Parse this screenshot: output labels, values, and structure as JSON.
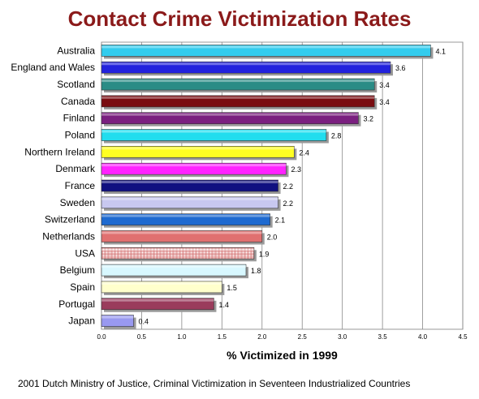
{
  "chart_data": {
    "type": "bar",
    "orientation": "horizontal",
    "title": "Contact Crime Victimization Rates",
    "xlabel": "% Victimized in 1999",
    "ylabel": "",
    "source": "2001 Dutch Ministry of Justice, Criminal Victimization in Seventeen Industrialized Countries",
    "xlim": [
      0,
      4.5
    ],
    "ticks": [
      "0.0",
      "0.5",
      "1.0",
      "1.5",
      "2.0",
      "2.5",
      "3.0",
      "3.5",
      "4.0",
      "4.5"
    ],
    "grid": true,
    "categories": [
      "Australia",
      "England and Wales",
      "Scotland",
      "Canada",
      "Finland",
      "Poland",
      "Northern Ireland",
      "Denmark",
      "France",
      "Sweden",
      "Switzerland",
      "Netherlands",
      "USA",
      "Belgium",
      "Spain",
      "Portugal",
      "Japan"
    ],
    "values": [
      4.1,
      3.6,
      3.4,
      3.4,
      3.2,
      2.8,
      2.4,
      2.3,
      2.2,
      2.2,
      2.1,
      2.0,
      1.9,
      1.8,
      1.5,
      1.4,
      0.4
    ],
    "value_labels": [
      "4.1",
      "3.6",
      "3.4",
      "3.4",
      "3.2",
      "2.8",
      "2.4",
      "2.3",
      "2.2",
      "2.2",
      "2.1",
      "2.0",
      "1.9",
      "1.8",
      "1.5",
      "1.4",
      "0.4"
    ],
    "colors": [
      "#33ccee",
      "#2222dd",
      "#2a8c86",
      "#7a0c10",
      "#7a1f7f",
      "#22ddee",
      "#ffff22",
      "#ff22ff",
      "#101080",
      "#c8c8f0",
      "#1e6ad0",
      "#e07070",
      "#ffffff",
      "#d8f8ff",
      "#ffffcc",
      "#9a3c5c",
      "#9999f0"
    ],
    "hatched": [
      false,
      false,
      false,
      false,
      false,
      false,
      false,
      false,
      false,
      false,
      false,
      false,
      true,
      false,
      false,
      false,
      false
    ]
  }
}
